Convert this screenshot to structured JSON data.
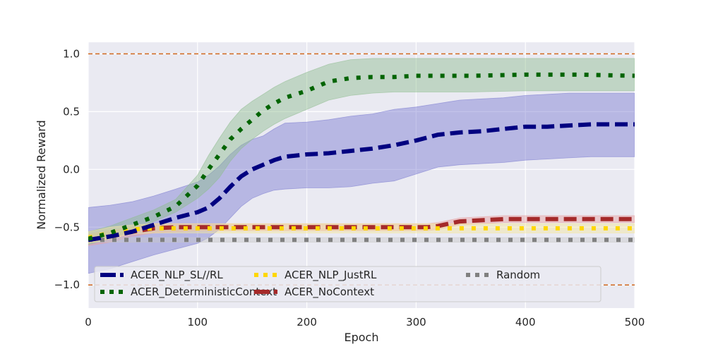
{
  "chart_data": {
    "type": "line",
    "xlabel": "Epoch",
    "ylabel": "Normalized Reward",
    "xlim": [
      0,
      500
    ],
    "ylim": [
      -1.2,
      1.1
    ],
    "xticks": [
      0,
      100,
      200,
      300,
      400,
      500
    ],
    "yticks": [
      -1.0,
      -0.5,
      0.0,
      0.5,
      1.0
    ],
    "ytick_labels": [
      "−1.0",
      "−0.5",
      "0.0",
      "0.5",
      "1.0"
    ],
    "grid": true,
    "legend_position": "lower-left",
    "reference_lines": [
      {
        "y": 1.0,
        "color": "#d2691e",
        "style": "dashed"
      },
      {
        "y": -1.0,
        "color": "#d2691e",
        "style": "dashed"
      }
    ],
    "series": [
      {
        "name": "ACER_NLP_SL//RL",
        "color": "#000080",
        "band_color": "#7b7bd1",
        "style": "dashed",
        "x": [
          0,
          20,
          40,
          60,
          80,
          100,
          110,
          120,
          130,
          140,
          150,
          160,
          170,
          180,
          200,
          220,
          240,
          260,
          280,
          300,
          320,
          340,
          360,
          380,
          400,
          420,
          440,
          460,
          480,
          500
        ],
        "y": [
          -0.61,
          -0.58,
          -0.54,
          -0.48,
          -0.42,
          -0.37,
          -0.33,
          -0.25,
          -0.15,
          -0.06,
          0.0,
          0.04,
          0.08,
          0.11,
          0.13,
          0.14,
          0.16,
          0.18,
          0.21,
          0.25,
          0.3,
          0.32,
          0.33,
          0.35,
          0.37,
          0.37,
          0.38,
          0.39,
          0.39,
          0.39
        ],
        "lower": [
          -0.9,
          -0.86,
          -0.8,
          -0.74,
          -0.69,
          -0.64,
          -0.59,
          -0.52,
          -0.42,
          -0.32,
          -0.25,
          -0.21,
          -0.18,
          -0.17,
          -0.16,
          -0.16,
          -0.15,
          -0.12,
          -0.1,
          -0.04,
          0.02,
          0.04,
          0.05,
          0.06,
          0.08,
          0.09,
          0.1,
          0.11,
          0.11,
          0.11
        ],
        "upper": [
          -0.33,
          -0.31,
          -0.28,
          -0.23,
          -0.17,
          -0.11,
          -0.05,
          0.03,
          0.13,
          0.21,
          0.26,
          0.29,
          0.35,
          0.4,
          0.41,
          0.43,
          0.46,
          0.48,
          0.52,
          0.54,
          0.57,
          0.6,
          0.61,
          0.62,
          0.64,
          0.65,
          0.66,
          0.66,
          0.66,
          0.66
        ]
      },
      {
        "name": "ACER_NoContext",
        "color": "#a52a2a",
        "band_color": "#e8a0a0",
        "style": "dashed",
        "x": [
          0,
          20,
          40,
          60,
          80,
          100,
          150,
          200,
          250,
          300,
          310,
          320,
          330,
          340,
          360,
          380,
          400,
          450,
          500
        ],
        "y": [
          -0.61,
          -0.58,
          -0.54,
          -0.51,
          -0.5,
          -0.5,
          -0.5,
          -0.5,
          -0.5,
          -0.5,
          -0.5,
          -0.49,
          -0.47,
          -0.45,
          -0.44,
          -0.43,
          -0.43,
          -0.43,
          -0.43
        ],
        "lower": [
          -0.66,
          -0.63,
          -0.58,
          -0.55,
          -0.54,
          -0.53,
          -0.53,
          -0.53,
          -0.53,
          -0.53,
          -0.53,
          -0.52,
          -0.5,
          -0.48,
          -0.47,
          -0.46,
          -0.46,
          -0.46,
          -0.46
        ],
        "upper": [
          -0.56,
          -0.53,
          -0.5,
          -0.47,
          -0.47,
          -0.47,
          -0.47,
          -0.47,
          -0.47,
          -0.47,
          -0.47,
          -0.46,
          -0.44,
          -0.42,
          -0.41,
          -0.4,
          -0.4,
          -0.4,
          -0.4
        ]
      },
      {
        "name": "ACER_DeterministicContext",
        "color": "#006400",
        "band_color": "#8fbc8f",
        "style": "dotted",
        "x": [
          0,
          20,
          40,
          60,
          80,
          100,
          110,
          120,
          130,
          140,
          150,
          160,
          170,
          180,
          200,
          220,
          240,
          260,
          280,
          300,
          350,
          400,
          450,
          500
        ],
        "y": [
          -0.6,
          -0.55,
          -0.48,
          -0.41,
          -0.32,
          -0.14,
          0.0,
          0.13,
          0.26,
          0.35,
          0.43,
          0.51,
          0.57,
          0.62,
          0.68,
          0.76,
          0.79,
          0.8,
          0.8,
          0.81,
          0.81,
          0.82,
          0.82,
          0.81
        ],
        "lower": [
          -0.65,
          -0.6,
          -0.53,
          -0.45,
          -0.37,
          -0.25,
          -0.17,
          -0.07,
          0.07,
          0.18,
          0.26,
          0.33,
          0.39,
          0.44,
          0.52,
          0.6,
          0.64,
          0.66,
          0.67,
          0.67,
          0.67,
          0.68,
          0.68,
          0.68
        ],
        "upper": [
          -0.54,
          -0.49,
          -0.42,
          -0.35,
          -0.26,
          -0.05,
          0.12,
          0.27,
          0.41,
          0.52,
          0.59,
          0.65,
          0.71,
          0.76,
          0.84,
          0.91,
          0.95,
          0.96,
          0.96,
          0.96,
          0.96,
          0.96,
          0.96,
          0.96
        ]
      },
      {
        "name": "Random",
        "color": "#808080",
        "band_color": "#c8c8c8",
        "style": "dotted",
        "x": [
          0,
          20,
          40,
          60,
          80,
          100,
          150,
          200,
          250,
          300,
          350,
          400,
          450,
          500
        ],
        "y": [
          -0.61,
          -0.61,
          -0.61,
          -0.61,
          -0.61,
          -0.61,
          -0.61,
          -0.61,
          -0.61,
          -0.61,
          -0.61,
          -0.61,
          -0.61,
          -0.61
        ],
        "lower": [
          -0.63,
          -0.63,
          -0.63,
          -0.63,
          -0.63,
          -0.63,
          -0.63,
          -0.63,
          -0.63,
          -0.63,
          -0.63,
          -0.63,
          -0.63,
          -0.63
        ],
        "upper": [
          -0.59,
          -0.59,
          -0.59,
          -0.59,
          -0.59,
          -0.59,
          -0.59,
          -0.59,
          -0.59,
          -0.59,
          -0.59,
          -0.59,
          -0.59,
          -0.59
        ]
      },
      {
        "name": "ACER_NLP_JustRL",
        "color": "#ffd700",
        "band_color": "#f5e79e",
        "style": "dotted",
        "x": [
          0,
          20,
          40,
          60,
          80,
          100,
          150,
          200,
          250,
          300,
          350,
          400,
          450,
          500
        ],
        "y": [
          -0.59,
          -0.55,
          -0.52,
          -0.51,
          -0.51,
          -0.51,
          -0.51,
          -0.51,
          -0.51,
          -0.51,
          -0.51,
          -0.51,
          -0.51,
          -0.51
        ],
        "lower": [
          -0.64,
          -0.6,
          -0.56,
          -0.55,
          -0.55,
          -0.55,
          -0.55,
          -0.55,
          -0.55,
          -0.55,
          -0.55,
          -0.55,
          -0.55,
          -0.55
        ],
        "upper": [
          -0.54,
          -0.5,
          -0.48,
          -0.47,
          -0.47,
          -0.47,
          -0.47,
          -0.47,
          -0.47,
          -0.47,
          -0.47,
          -0.47,
          -0.47,
          -0.47
        ]
      }
    ],
    "legend_order": [
      0,
      2,
      4,
      1,
      3
    ]
  }
}
